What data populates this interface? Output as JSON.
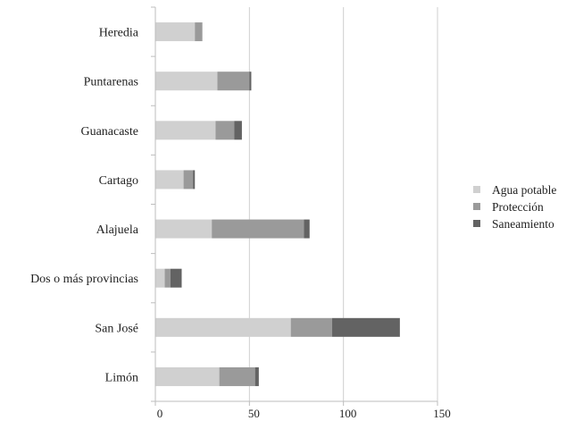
{
  "chart_data": {
    "type": "bar",
    "orientation": "horizontal",
    "stacked": true,
    "title": "",
    "xlabel": "",
    "ylabel": "",
    "categories": [
      "Heredia",
      "Puntarenas",
      "Guanacaste",
      "Cartago",
      "Alajuela",
      "Dos o más provincias",
      "San José",
      "Limón"
    ],
    "series": [
      {
        "name": "Agua potable",
        "color": "#d0d0d0",
        "values": [
          21,
          33,
          32,
          15,
          30,
          5,
          72,
          34
        ]
      },
      {
        "name": "Protección",
        "color": "#9a9a9a",
        "values": [
          4,
          17,
          10,
          5,
          49,
          3,
          22,
          19
        ]
      },
      {
        "name": "Saneamiento",
        "color": "#636363",
        "values": [
          0,
          1,
          4,
          1,
          3,
          6,
          36,
          2
        ]
      }
    ],
    "xlim": [
      0,
      150
    ],
    "xticks": [
      "0",
      "50",
      "100",
      "150"
    ],
    "grid": true,
    "legend_position": "right"
  }
}
